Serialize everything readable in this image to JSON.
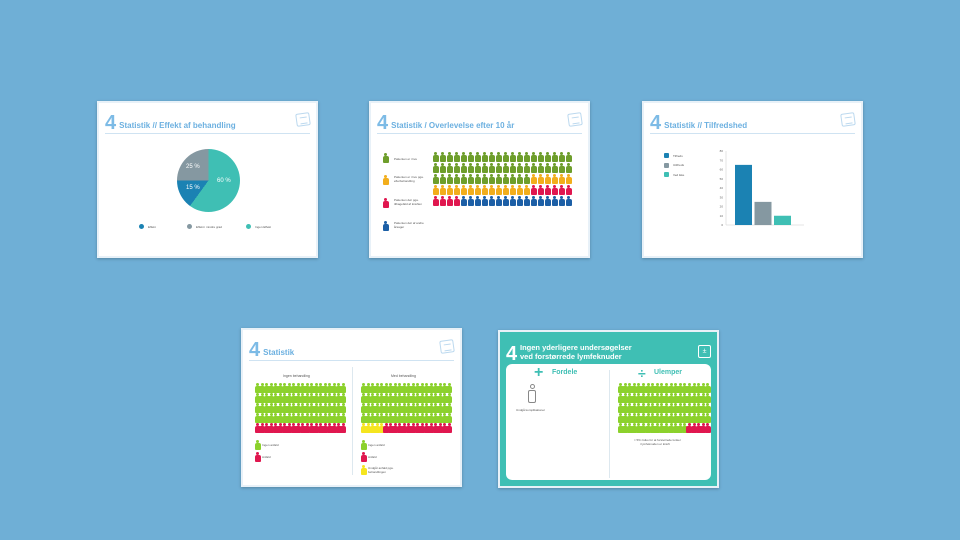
{
  "colors": {
    "blue": "#1b82b3",
    "gray": "#8598a1",
    "teal": "#3fbfb4",
    "green": "#6e9e2b",
    "yellow": "#f2ae1c",
    "red": "#e0174f",
    "navy": "#1c5fa6",
    "lime": "#8cd12c",
    "lemon": "#f5e51f"
  },
  "slides": [
    {
      "number": "4",
      "title": "Statistik // Effekt af behandling",
      "chart_data": {
        "type": "pie",
        "slices": [
          {
            "label": "Ingen Effekt",
            "value": 60,
            "text": "60 %"
          },
          {
            "label": "Effekt",
            "value": 15,
            "text": "15 %"
          },
          {
            "label": "Effekt i mindre grad",
            "value": 25,
            "text": "25 %"
          }
        ]
      },
      "legend": [
        "Effekt",
        "Effekt i mindre grad",
        "Ingen Effekt"
      ]
    },
    {
      "number": "4",
      "title": "Statistik / Overlevelse efter 10 år",
      "legend": [
        "Patienten er i live",
        "Patienten er i live pga. efterbehandling",
        "Patienten dør pga. tilbagefald af kræften",
        "Patienten dør af andre årsager"
      ],
      "counts": {
        "green": 54,
        "yellow": 20,
        "red": 10,
        "navy": 16
      }
    },
    {
      "number": "4",
      "title": "Statistik // Tilfredshed",
      "chart_data": {
        "type": "bar",
        "categories": [
          "Tilfreds",
          "Utilfreds",
          "Ved ikke"
        ],
        "values": [
          65,
          25,
          10
        ],
        "ylim": [
          0,
          80
        ],
        "yticks": [
          "0",
          "10",
          "20",
          "30",
          "40",
          "50",
          "60",
          "70",
          "80"
        ]
      }
    },
    {
      "number": "4",
      "title": "Statistik",
      "left": {
        "heading": "Ingen behandling",
        "counts": {
          "lime": 80,
          "red": 20
        },
        "legend": [
          "Ingen anfald",
          "Anfald"
        ]
      },
      "right": {
        "heading": "Med behandling",
        "counts": {
          "lime": 80,
          "lemon": 5,
          "red": 15
        },
        "legend": [
          "Ingen anfald",
          "Anfald",
          "Undgår anfald pga. behandlingen"
        ]
      }
    },
    {
      "number": "4",
      "title_line1": "Ingen yderligere undersøgelser",
      "title_line2": "ved forstørrede lymfeknuder",
      "pros": {
        "heading": "Fordele",
        "item": "Undgå komplikationer"
      },
      "cons": {
        "heading": "Ulemper",
        "counts": {
          "lime": 95,
          "red": 5
        },
        "note_line1": "≈ 5% risiko for at forstørrede lunker",
        "note_line2": "i lymfeknuden er kræft"
      }
    }
  ]
}
